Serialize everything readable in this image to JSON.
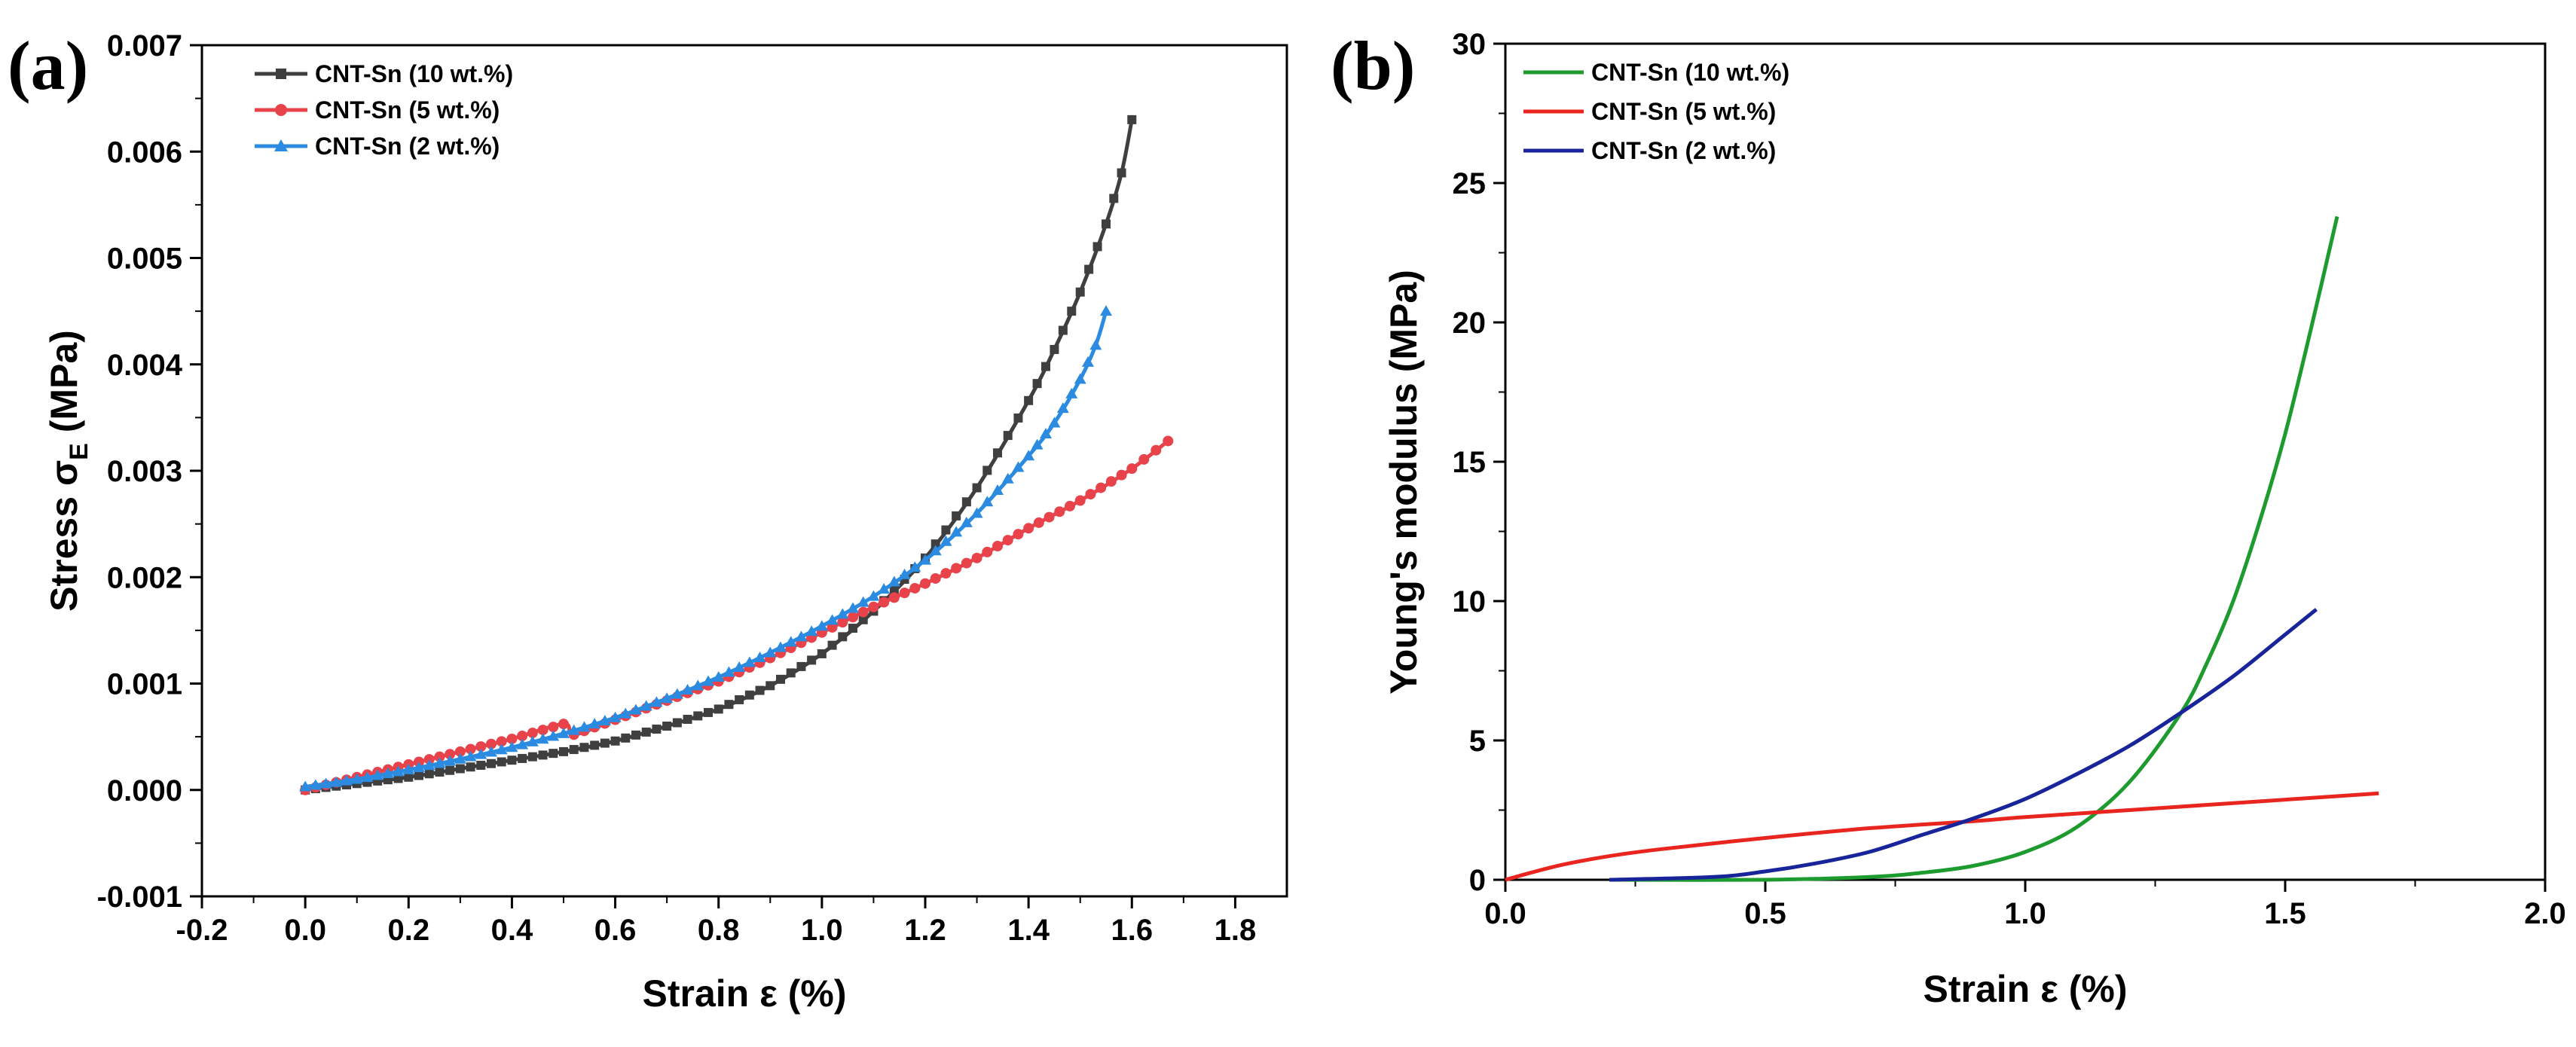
{
  "chart_data": [
    {
      "type": "line",
      "panel_label": "(a)",
      "title": "",
      "xlabel": "Strain ε (%)",
      "ylabel": "Stress σ",
      "ylabel_subscript": "E",
      "ylabel_unit": " (MPa)",
      "xlim": [
        -0.2,
        1.9
      ],
      "ylim": [
        -0.001,
        0.007
      ],
      "xticks": [
        "-0.2",
        "0.0",
        "0.2",
        "0.4",
        "0.6",
        "0.8",
        "1.0",
        "1.2",
        "1.4",
        "1.6",
        "1.8"
      ],
      "yticks": [
        "-0.001",
        "0.000",
        "0.001",
        "0.002",
        "0.003",
        "0.004",
        "0.005",
        "0.006",
        "0.007"
      ],
      "legend_position": "top-left",
      "series": [
        {
          "name": "CNT-Sn (10 wt.%)",
          "color": "#3f3f3f",
          "marker": "square",
          "x": [
            0.0,
            0.1,
            0.2,
            0.3,
            0.4,
            0.5,
            0.6,
            0.7,
            0.8,
            0.9,
            1.0,
            1.1,
            1.2,
            1.3,
            1.4,
            1.45,
            1.5,
            1.55,
            1.58,
            1.6
          ],
          "y": [
            0.0,
            6e-05,
            0.00012,
            0.0002,
            0.00028,
            0.00036,
            0.00046,
            0.0006,
            0.00076,
            0.00098,
            0.00128,
            0.00168,
            0.00218,
            0.00284,
            0.00366,
            0.00414,
            0.00468,
            0.00532,
            0.0058,
            0.0063
          ]
        },
        {
          "name": "CNT-Sn (5 wt.%)",
          "color": "#e8434b",
          "marker": "circle",
          "x": [
            0.0,
            0.1,
            0.2,
            0.3,
            0.4,
            0.5,
            0.52,
            0.6,
            0.7,
            0.8,
            0.9,
            1.0,
            1.1,
            1.2,
            1.3,
            1.4,
            1.5,
            1.6,
            1.67
          ],
          "y": [
            0.0,
            0.00012,
            0.00024,
            0.00036,
            0.00048,
            0.00062,
            0.00052,
            0.00066,
            0.00084,
            0.00102,
            0.00124,
            0.00148,
            0.00172,
            0.00194,
            0.00218,
            0.00246,
            0.00272,
            0.00302,
            0.00328
          ]
        },
        {
          "name": "CNT-Sn (2 wt.%)",
          "color": "#2a8be0",
          "marker": "triangle",
          "x": [
            0.0,
            0.1,
            0.2,
            0.3,
            0.4,
            0.5,
            0.6,
            0.7,
            0.8,
            0.9,
            1.0,
            1.1,
            1.2,
            1.3,
            1.4,
            1.45,
            1.5,
            1.53,
            1.55
          ],
          "y": [
            3e-05,
            0.0001,
            0.00019,
            0.00029,
            0.0004,
            0.00053,
            0.00068,
            0.00086,
            0.00106,
            0.00129,
            0.00154,
            0.00182,
            0.00216,
            0.0026,
            0.00314,
            0.00345,
            0.00386,
            0.00418,
            0.0045
          ]
        }
      ]
    },
    {
      "type": "line",
      "panel_label": "(b)",
      "title": "",
      "xlabel": "Strain ε (%)",
      "ylabel": "Young's modulus (MPa)",
      "xlim": [
        0.0,
        2.0
      ],
      "ylim": [
        0,
        30
      ],
      "xticks": [
        "0.0",
        "0.5",
        "1.0",
        "1.5",
        "2.0"
      ],
      "yticks": [
        "0",
        "5",
        "10",
        "15",
        "20",
        "25",
        "30"
      ],
      "legend_position": "top-left",
      "series": [
        {
          "name": "CNT-Sn (10 wt.%)",
          "color": "#1e9b2f",
          "x": [
            0.2,
            0.5,
            0.7,
            0.8,
            0.9,
            1.0,
            1.1,
            1.2,
            1.3,
            1.35,
            1.4,
            1.45,
            1.5,
            1.55,
            1.6
          ],
          "y": [
            0.0,
            0.0,
            0.1,
            0.25,
            0.5,
            1.0,
            1.9,
            3.5,
            6.0,
            7.8,
            10.0,
            12.8,
            16.0,
            19.8,
            23.8
          ]
        },
        {
          "name": "CNT-Sn (5 wt.%)",
          "color": "#e8261f",
          "x": [
            0.0,
            0.1,
            0.2,
            0.3,
            0.5,
            0.7,
            0.9,
            1.0,
            1.2,
            1.4,
            1.6,
            1.68
          ],
          "y": [
            0.0,
            0.5,
            0.85,
            1.1,
            1.5,
            1.85,
            2.1,
            2.25,
            2.5,
            2.75,
            3.0,
            3.1
          ]
        },
        {
          "name": "CNT-Sn (2 wt.%)",
          "color": "#17249a",
          "x": [
            0.2,
            0.4,
            0.5,
            0.6,
            0.7,
            0.8,
            0.9,
            1.0,
            1.1,
            1.2,
            1.3,
            1.4,
            1.5,
            1.56
          ],
          "y": [
            0.0,
            0.1,
            0.3,
            0.6,
            1.0,
            1.6,
            2.2,
            2.9,
            3.8,
            4.8,
            6.0,
            7.3,
            8.8,
            9.7
          ]
        }
      ]
    }
  ]
}
